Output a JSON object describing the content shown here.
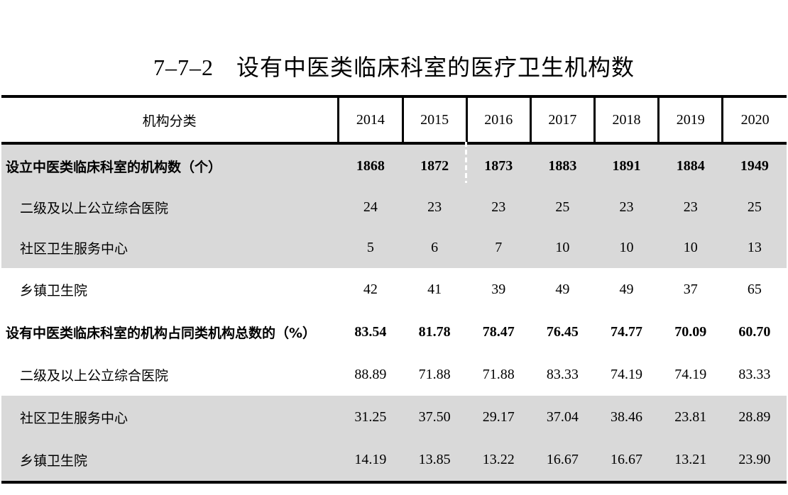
{
  "title": {
    "number": "7–7–2",
    "text": "设有中医类临床科室的医疗卫生机构数"
  },
  "table": {
    "header_label": "机构分类",
    "years": [
      "2014",
      "2015",
      "2016",
      "2017",
      "2018",
      "2019",
      "2020"
    ],
    "rows": [
      {
        "label": "设立中医类临床科室的机构数（个）",
        "values": [
          "1868",
          "1872",
          "1873",
          "1883",
          "1891",
          "1884",
          "1949"
        ]
      },
      {
        "label": "二级及以上公立综合医院",
        "values": [
          "24",
          "23",
          "23",
          "25",
          "23",
          "23",
          "25"
        ]
      },
      {
        "label": "社区卫生服务中心",
        "values": [
          "5",
          "6",
          "7",
          "10",
          "10",
          "10",
          "13"
        ]
      },
      {
        "label": "乡镇卫生院",
        "values": [
          "42",
          "41",
          "39",
          "49",
          "49",
          "37",
          "65"
        ]
      },
      {
        "label": "设有中医类临床科室的机构占同类机构总数的（%）",
        "values": [
          "83.54",
          "81.78",
          "78.47",
          "76.45",
          "74.77",
          "70.09",
          "60.70"
        ]
      },
      {
        "label": "二级及以上公立综合医院",
        "values": [
          "88.89",
          "71.88",
          "71.88",
          "83.33",
          "74.19",
          "74.19",
          "83.33"
        ]
      },
      {
        "label": "社区卫生服务中心",
        "values": [
          "31.25",
          "37.50",
          "29.17",
          "37.04",
          "38.46",
          "23.81",
          "28.89"
        ]
      },
      {
        "label": "乡镇卫生院",
        "values": [
          "14.19",
          "13.85",
          "13.22",
          "16.67",
          "16.67",
          "13.21",
          "23.90"
        ]
      }
    ]
  }
}
